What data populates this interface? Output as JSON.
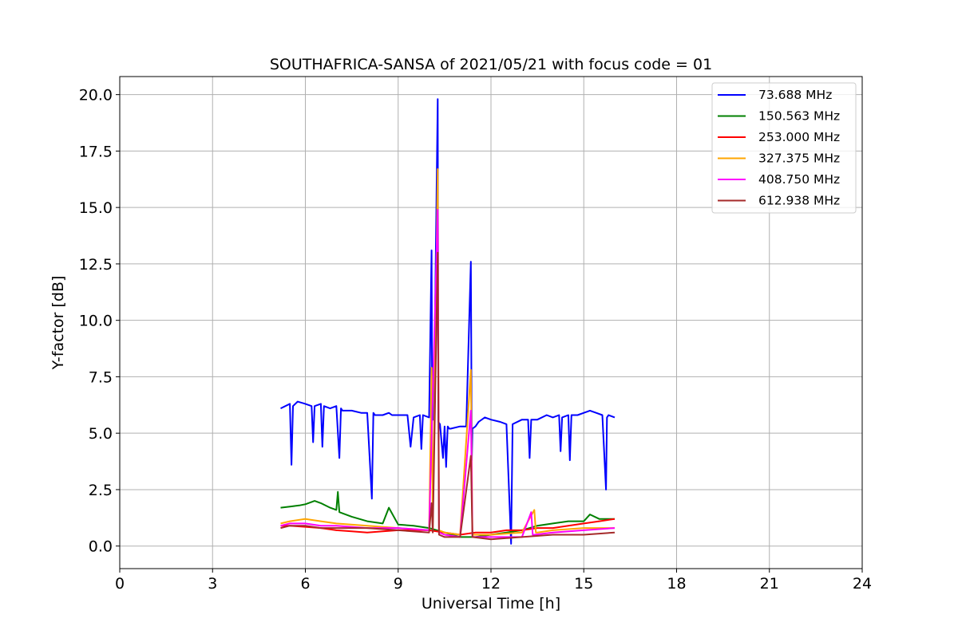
{
  "chart_data": {
    "type": "line",
    "title": "SOUTHAFRICA-SANSA of 2021/05/21 with focus code = 01",
    "xlabel": "Universal Time [h]",
    "ylabel": "Y-factor [dB]",
    "xlim": [
      0,
      24
    ],
    "ylim": [
      -1.0,
      20.8
    ],
    "xticks": [
      0,
      3,
      6,
      9,
      12,
      15,
      18,
      21,
      24
    ],
    "xtick_labels": [
      "0",
      "3",
      "6",
      "9",
      "12",
      "15",
      "18",
      "21",
      "24"
    ],
    "yticks": [
      0,
      2.5,
      5,
      7.5,
      10,
      12.5,
      15,
      17.5,
      20
    ],
    "ytick_labels": [
      "0.0",
      "2.5",
      "5.0",
      "7.5",
      "10.0",
      "12.5",
      "15.0",
      "17.5",
      "20.0"
    ],
    "grid": true,
    "legend_position": "top-right",
    "series": [
      {
        "name": "  73.688 MHz",
        "color": "#0000ff",
        "x": [
          5.2,
          5.5,
          5.55,
          5.6,
          5.75,
          6.0,
          6.2,
          6.25,
          6.3,
          6.5,
          6.55,
          6.6,
          6.8,
          7.0,
          7.1,
          7.15,
          7.2,
          7.5,
          7.8,
          8.0,
          8.15,
          8.2,
          8.25,
          8.5,
          8.7,
          8.8,
          9.0,
          9.3,
          9.4,
          9.5,
          9.7,
          9.75,
          9.8,
          10.0,
          10.08,
          10.1,
          10.15,
          10.28,
          10.3,
          10.35,
          10.45,
          10.5,
          10.55,
          10.6,
          10.65,
          10.7,
          11.0,
          11.2,
          11.35,
          11.38,
          11.4,
          11.5,
          11.6,
          11.8,
          12.0,
          12.3,
          12.5,
          12.65,
          12.7,
          13.0,
          13.2,
          13.25,
          13.3,
          13.5,
          13.8,
          14.0,
          14.2,
          14.25,
          14.3,
          14.5,
          14.55,
          14.6,
          14.8,
          15.0,
          15.2,
          15.4,
          15.6,
          15.72,
          15.75,
          15.8,
          16.0
        ],
        "y": [
          6.1,
          6.3,
          3.6,
          6.2,
          6.4,
          6.3,
          6.2,
          4.6,
          6.2,
          6.3,
          4.4,
          6.2,
          6.1,
          6.2,
          3.9,
          6.1,
          6.0,
          6.0,
          5.9,
          5.9,
          2.1,
          5.9,
          5.8,
          5.8,
          5.9,
          5.8,
          5.8,
          5.8,
          4.4,
          5.7,
          5.8,
          4.3,
          5.8,
          5.7,
          13.1,
          5.6,
          5.6,
          19.8,
          5.5,
          5.4,
          3.9,
          5.3,
          3.5,
          5.3,
          5.2,
          5.2,
          5.3,
          5.3,
          12.6,
          3.8,
          5.2,
          5.3,
          5.5,
          5.7,
          5.6,
          5.5,
          5.4,
          0.1,
          5.4,
          5.6,
          5.6,
          3.9,
          5.6,
          5.6,
          5.8,
          5.7,
          5.8,
          4.2,
          5.7,
          5.8,
          3.8,
          5.8,
          5.8,
          5.9,
          6.0,
          5.9,
          5.8,
          2.5,
          5.7,
          5.8,
          5.7
        ]
      },
      {
        "name": "150.563 MHz",
        "color": "#008000",
        "x": [
          5.2,
          5.5,
          5.8,
          6.0,
          6.3,
          6.5,
          6.8,
          7.0,
          7.05,
          7.1,
          7.5,
          8.0,
          8.5,
          8.7,
          9.0,
          9.5,
          10.0,
          10.5,
          11.0,
          11.5,
          12.0,
          12.5,
          13.0,
          13.5,
          14.0,
          14.5,
          15.0,
          15.2,
          15.5,
          16.0
        ],
        "y": [
          1.7,
          1.75,
          1.8,
          1.85,
          2.0,
          1.9,
          1.7,
          1.6,
          2.4,
          1.5,
          1.3,
          1.1,
          1.0,
          1.7,
          0.95,
          0.9,
          0.8,
          0.6,
          0.4,
          0.4,
          0.5,
          0.6,
          0.7,
          0.9,
          1.0,
          1.1,
          1.1,
          1.4,
          1.2,
          1.2
        ]
      },
      {
        "name": "253.000 MHz",
        "color": "#ff0000",
        "x": [
          5.2,
          5.5,
          6.0,
          6.5,
          7.0,
          7.5,
          8.0,
          8.5,
          9.0,
          9.5,
          10.0,
          10.5,
          11.0,
          11.5,
          12.0,
          12.5,
          13.0,
          13.5,
          14.0,
          14.5,
          15.0,
          15.5,
          16.0
        ],
        "y": [
          0.9,
          0.9,
          0.85,
          0.8,
          0.7,
          0.65,
          0.6,
          0.65,
          0.7,
          0.7,
          0.7,
          0.6,
          0.5,
          0.6,
          0.6,
          0.7,
          0.7,
          0.8,
          0.8,
          0.9,
          1.0,
          1.1,
          1.2
        ]
      },
      {
        "name": "327.375 MHz",
        "color": "#ffa500",
        "x": [
          5.2,
          5.5,
          6.0,
          6.5,
          7.0,
          8.0,
          9.0,
          10.0,
          10.08,
          10.12,
          10.28,
          10.32,
          10.5,
          11.0,
          11.35,
          11.4,
          12.0,
          13.0,
          13.4,
          13.45,
          13.5,
          14.0,
          15.0,
          16.0
        ],
        "y": [
          1.0,
          1.1,
          1.2,
          1.1,
          1.0,
          0.9,
          0.8,
          0.7,
          7.9,
          0.7,
          16.7,
          0.7,
          0.6,
          0.5,
          7.8,
          0.5,
          0.5,
          0.6,
          1.6,
          0.6,
          0.6,
          0.7,
          0.8,
          0.8
        ]
      },
      {
        "name": "408.750 MHz",
        "color": "#ff00ff",
        "x": [
          5.2,
          5.5,
          6.0,
          6.5,
          7.0,
          8.0,
          9.0,
          10.0,
          10.28,
          10.32,
          10.5,
          11.0,
          11.35,
          11.4,
          12.0,
          13.0,
          13.3,
          13.35,
          13.4,
          14.0,
          15.0,
          16.0
        ],
        "y": [
          0.9,
          1.0,
          1.0,
          0.9,
          0.9,
          0.8,
          0.8,
          0.7,
          14.9,
          0.6,
          0.5,
          0.4,
          6.0,
          0.4,
          0.4,
          0.4,
          1.5,
          0.5,
          0.5,
          0.6,
          0.7,
          0.8
        ]
      },
      {
        "name": "612.938 MHz",
        "color": "#a52a2a",
        "x": [
          5.2,
          5.5,
          6.0,
          6.5,
          7.0,
          8.0,
          9.0,
          10.0,
          10.08,
          10.12,
          10.28,
          10.32,
          10.5,
          11.0,
          11.35,
          11.4,
          12.0,
          13.0,
          14.0,
          15.0,
          16.0
        ],
        "y": [
          0.8,
          0.9,
          0.9,
          0.8,
          0.8,
          0.8,
          0.7,
          0.6,
          1.9,
          0.6,
          13.0,
          0.5,
          0.4,
          0.4,
          4.0,
          0.4,
          0.3,
          0.4,
          0.5,
          0.5,
          0.6
        ]
      }
    ]
  }
}
